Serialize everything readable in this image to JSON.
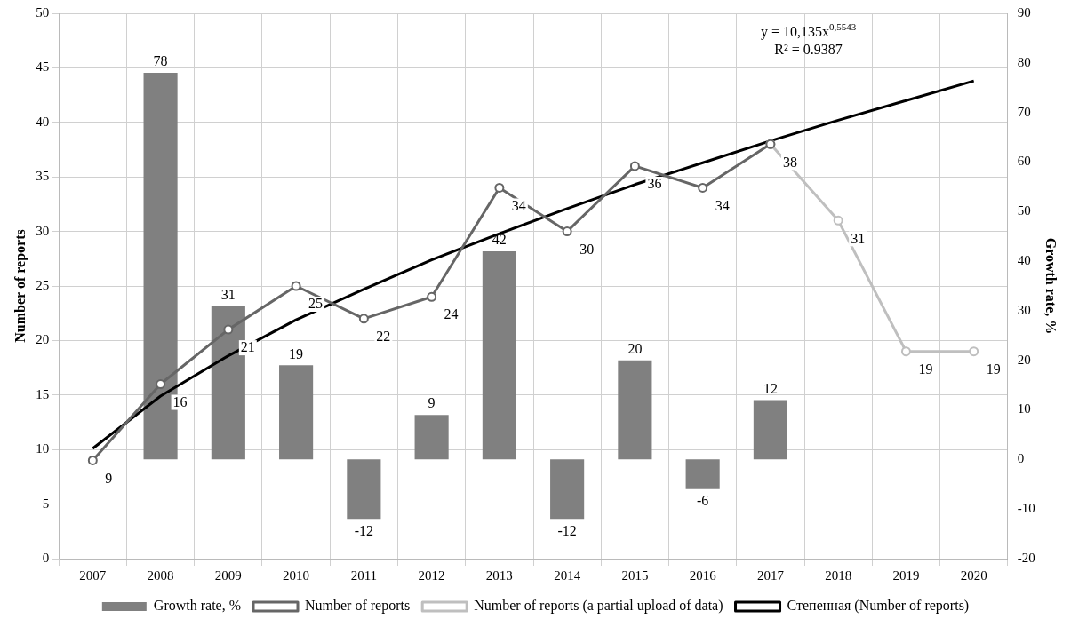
{
  "chart_data": {
    "type": "bar",
    "xlabel": null,
    "ylabel": "Number of reports",
    "y2label": "Growth rate, %",
    "categories": [
      "2007",
      "2008",
      "2009",
      "2010",
      "2011",
      "2012",
      "2013",
      "2014",
      "2015",
      "2016",
      "2017",
      "2018",
      "2019",
      "2020"
    ],
    "series": [
      {
        "name": "Growth rate, %",
        "axis": "y2",
        "color": "#808080",
        "values": [
          null,
          78,
          31,
          19,
          -12,
          9,
          42,
          -12,
          20,
          -6,
          12,
          null,
          null,
          null
        ],
        "value_labels": [
          null,
          "78",
          "31",
          "19",
          "-12",
          "9",
          "42",
          "-12",
          "20",
          "-6",
          "12",
          null,
          null,
          null
        ]
      },
      {
        "name": "Number of reports",
        "type": "line",
        "color": "#666666",
        "values": [
          9,
          16,
          21,
          25,
          22,
          24,
          34,
          30,
          36,
          34,
          38,
          null,
          null,
          null
        ],
        "value_labels": [
          "9",
          "16",
          "21",
          "25",
          "22",
          "24",
          "34",
          "30",
          "36",
          "34",
          "38",
          null,
          null,
          null
        ]
      },
      {
        "name": "Number of reports (a partial upload of data)",
        "type": "line",
        "color": "#bfbfbf",
        "values": [
          null,
          null,
          null,
          null,
          null,
          null,
          null,
          null,
          null,
          null,
          38,
          31,
          19,
          19
        ],
        "value_labels": [
          null,
          null,
          null,
          null,
          null,
          null,
          null,
          null,
          null,
          null,
          null,
          "31",
          "19",
          "19"
        ]
      },
      {
        "name": "Степенная (Number of reports)",
        "type": "line",
        "marker": "none",
        "color": "#000000",
        "values": [
          10.1,
          14.9,
          18.6,
          21.9,
          24.7,
          27.4,
          29.8,
          32.1,
          34.3,
          36.3,
          38.3,
          40.2,
          42.0,
          43.8
        ]
      }
    ],
    "ylim": [
      0,
      50
    ],
    "yticks": [
      0,
      5,
      10,
      15,
      20,
      25,
      30,
      35,
      40,
      45,
      50
    ],
    "y2lim": [
      -20,
      90
    ],
    "y2ticks": [
      -20,
      -10,
      0,
      10,
      20,
      30,
      40,
      50,
      60,
      70,
      80,
      90
    ],
    "annotations": [
      "y = 10,135x$^{0,5543}$",
      "R² = 0.9387"
    ],
    "grid": true,
    "legend": "bottom",
    "marker": "circle",
    "line_style": "solid"
  }
}
